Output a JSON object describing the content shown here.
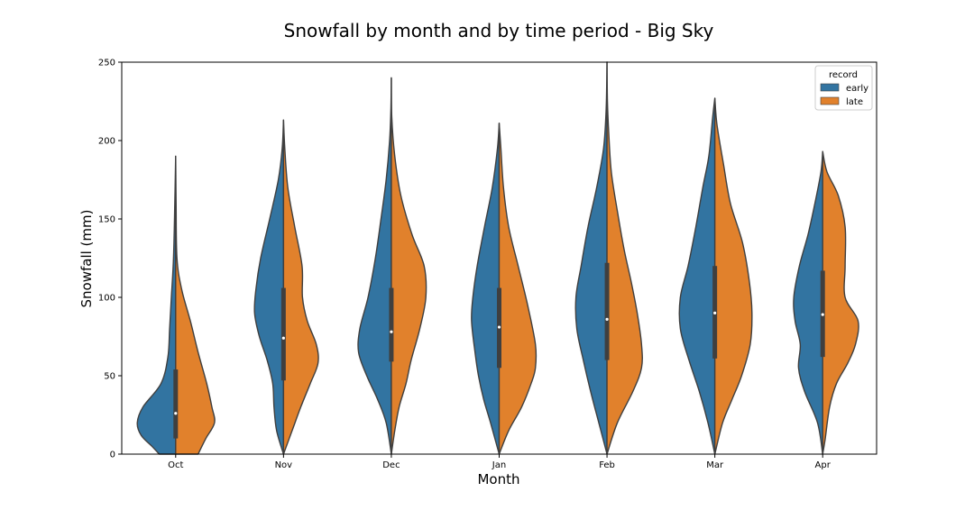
{
  "chart_data": {
    "type": "violin",
    "title": "Snowfall by month and by time period - Big Sky",
    "xlabel": "Month",
    "ylabel": "Snowfall (mm)",
    "ylim": [
      0,
      250
    ],
    "yticks": [
      0,
      50,
      100,
      150,
      200,
      250
    ],
    "categories": [
      "Oct",
      "Nov",
      "Dec",
      "Jan",
      "Feb",
      "Mar",
      "Apr"
    ],
    "legend": {
      "title": "record",
      "placement": "top-right"
    },
    "grid": false,
    "colors": {
      "early": "#3274a1",
      "late": "#e1812c",
      "outline": "#3f3f3f",
      "box": "#3f3f3f",
      "median": "#ffffff"
    },
    "series": [
      {
        "name": "early",
        "violins": [
          {
            "ymin": 0,
            "ymax": 190,
            "shape": [
              [
                190,
                0
              ],
              [
                160,
                0.02
              ],
              [
                125,
                0.05
              ],
              [
                100,
                0.1
              ],
              [
                80,
                0.14
              ],
              [
                62,
                0.18
              ],
              [
                45,
                0.34
              ],
              [
                30,
                0.76
              ],
              [
                20,
                0.89
              ],
              [
                12,
                0.8
              ],
              [
                5,
                0.55
              ],
              [
                0,
                0.38
              ]
            ]
          },
          {
            "ymin": 0,
            "ymax": 213,
            "shape": [
              [
                213,
                0
              ],
              [
                195,
                0.03
              ],
              [
                175,
                0.12
              ],
              [
                150,
                0.32
              ],
              [
                125,
                0.53
              ],
              [
                105,
                0.64
              ],
              [
                90,
                0.67
              ],
              [
                75,
                0.56
              ],
              [
                60,
                0.38
              ],
              [
                45,
                0.25
              ],
              [
                30,
                0.22
              ],
              [
                15,
                0.16
              ],
              [
                0,
                0
              ]
            ]
          },
          {
            "ymin": 0,
            "ymax": 240,
            "shape": [
              [
                240,
                0
              ],
              [
                220,
                0.01
              ],
              [
                200,
                0.04
              ],
              [
                175,
                0.12
              ],
              [
                150,
                0.24
              ],
              [
                125,
                0.37
              ],
              [
                100,
                0.54
              ],
              [
                80,
                0.73
              ],
              [
                65,
                0.76
              ],
              [
                50,
                0.57
              ],
              [
                35,
                0.32
              ],
              [
                20,
                0.12
              ],
              [
                0,
                0
              ]
            ]
          },
          {
            "ymin": 0,
            "ymax": 211,
            "shape": [
              [
                211,
                0
              ],
              [
                195,
                0.04
              ],
              [
                170,
                0.16
              ],
              [
                145,
                0.34
              ],
              [
                120,
                0.51
              ],
              [
                100,
                0.61
              ],
              [
                85,
                0.64
              ],
              [
                65,
                0.56
              ],
              [
                50,
                0.48
              ],
              [
                35,
                0.36
              ],
              [
                20,
                0.2
              ],
              [
                0,
                0
              ]
            ]
          },
          {
            "ymin": 0,
            "ymax": 250,
            "shape": [
              [
                250,
                0
              ],
              [
                220,
                0.02
              ],
              [
                195,
                0.08
              ],
              [
                170,
                0.24
              ],
              [
                145,
                0.44
              ],
              [
                120,
                0.6
              ],
              [
                100,
                0.72
              ],
              [
                80,
                0.7
              ],
              [
                60,
                0.55
              ],
              [
                40,
                0.38
              ],
              [
                20,
                0.19
              ],
              [
                0,
                0
              ]
            ]
          },
          {
            "ymin": 0,
            "ymax": 227,
            "shape": [
              [
                227,
                0
              ],
              [
                215,
                0.05
              ],
              [
                190,
                0.14
              ],
              [
                170,
                0.28
              ],
              [
                145,
                0.44
              ],
              [
                120,
                0.62
              ],
              [
                100,
                0.8
              ],
              [
                80,
                0.8
              ],
              [
                60,
                0.6
              ],
              [
                40,
                0.36
              ],
              [
                20,
                0.16
              ],
              [
                0,
                0
              ]
            ]
          },
          {
            "ymin": 0,
            "ymax": 193,
            "shape": [
              [
                193,
                0
              ],
              [
                180,
                0.04
              ],
              [
                160,
                0.18
              ],
              [
                140,
                0.34
              ],
              [
                120,
                0.54
              ],
              [
                100,
                0.67
              ],
              [
                85,
                0.64
              ],
              [
                70,
                0.52
              ],
              [
                55,
                0.56
              ],
              [
                40,
                0.42
              ],
              [
                20,
                0.12
              ],
              [
                0,
                0
              ]
            ]
          }
        ]
      },
      {
        "name": "late",
        "violins": [
          {
            "ymin": 0,
            "ymax": 190,
            "shape": [
              [
                190,
                0
              ],
              [
                160,
                0.01
              ],
              [
                125,
                0.03
              ],
              [
                105,
                0.14
              ],
              [
                85,
                0.34
              ],
              [
                65,
                0.52
              ],
              [
                45,
                0.72
              ],
              [
                30,
                0.84
              ],
              [
                20,
                0.9
              ],
              [
                10,
                0.7
              ],
              [
                0,
                0.52
              ]
            ]
          },
          {
            "ymin": 0,
            "ymax": 213,
            "shape": [
              [
                213,
                0
              ],
              [
                195,
                0.03
              ],
              [
                170,
                0.1
              ],
              [
                145,
                0.26
              ],
              [
                120,
                0.43
              ],
              [
                100,
                0.44
              ],
              [
                85,
                0.55
              ],
              [
                70,
                0.76
              ],
              [
                58,
                0.8
              ],
              [
                45,
                0.62
              ],
              [
                30,
                0.4
              ],
              [
                15,
                0.2
              ],
              [
                0,
                0
              ]
            ]
          },
          {
            "ymin": 0,
            "ymax": 240,
            "shape": [
              [
                240,
                0
              ],
              [
                215,
                0.01
              ],
              [
                190,
                0.08
              ],
              [
                165,
                0.22
              ],
              [
                140,
                0.48
              ],
              [
                120,
                0.76
              ],
              [
                100,
                0.8
              ],
              [
                80,
                0.66
              ],
              [
                60,
                0.46
              ],
              [
                45,
                0.34
              ],
              [
                30,
                0.18
              ],
              [
                15,
                0.08
              ],
              [
                0,
                0
              ]
            ]
          },
          {
            "ymin": 0,
            "ymax": 211,
            "shape": [
              [
                211,
                0
              ],
              [
                195,
                0.04
              ],
              [
                170,
                0.1
              ],
              [
                145,
                0.22
              ],
              [
                120,
                0.44
              ],
              [
                95,
                0.66
              ],
              [
                70,
                0.84
              ],
              [
                55,
                0.84
              ],
              [
                45,
                0.74
              ],
              [
                30,
                0.52
              ],
              [
                15,
                0.22
              ],
              [
                0,
                0
              ]
            ]
          },
          {
            "ymin": 0,
            "ymax": 250,
            "shape": [
              [
                250,
                0
              ],
              [
                225,
                0.01
              ],
              [
                205,
                0.04
              ],
              [
                180,
                0.1
              ],
              [
                155,
                0.24
              ],
              [
                130,
                0.4
              ],
              [
                110,
                0.56
              ],
              [
                90,
                0.7
              ],
              [
                70,
                0.8
              ],
              [
                55,
                0.8
              ],
              [
                40,
                0.6
              ],
              [
                20,
                0.24
              ],
              [
                0,
                0
              ]
            ]
          },
          {
            "ymin": 0,
            "ymax": 227,
            "shape": [
              [
                227,
                0
              ],
              [
                210,
                0.05
              ],
              [
                185,
                0.2
              ],
              [
                160,
                0.36
              ],
              [
                135,
                0.64
              ],
              [
                110,
                0.8
              ],
              [
                90,
                0.86
              ],
              [
                70,
                0.82
              ],
              [
                50,
                0.62
              ],
              [
                35,
                0.4
              ],
              [
                20,
                0.18
              ],
              [
                0,
                0
              ]
            ]
          },
          {
            "ymin": 0,
            "ymax": 193,
            "shape": [
              [
                193,
                0
              ],
              [
                180,
                0.1
              ],
              [
                165,
                0.36
              ],
              [
                145,
                0.52
              ],
              [
                120,
                0.52
              ],
              [
                100,
                0.52
              ],
              [
                85,
                0.82
              ],
              [
                70,
                0.76
              ],
              [
                58,
                0.58
              ],
              [
                45,
                0.32
              ],
              [
                30,
                0.16
              ],
              [
                10,
                0.06
              ],
              [
                0,
                0
              ]
            ]
          }
        ]
      }
    ],
    "boxes": [
      {
        "q1": 10,
        "median": 26,
        "q3": 54
      },
      {
        "q1": 47,
        "median": 74,
        "q3": 106
      },
      {
        "q1": 59,
        "median": 78,
        "q3": 106
      },
      {
        "q1": 55,
        "median": 81,
        "q3": 106
      },
      {
        "q1": 60,
        "median": 86,
        "q3": 122
      },
      {
        "q1": 61,
        "median": 90,
        "q3": 120
      },
      {
        "q1": 62,
        "median": 89,
        "q3": 117
      }
    ]
  }
}
